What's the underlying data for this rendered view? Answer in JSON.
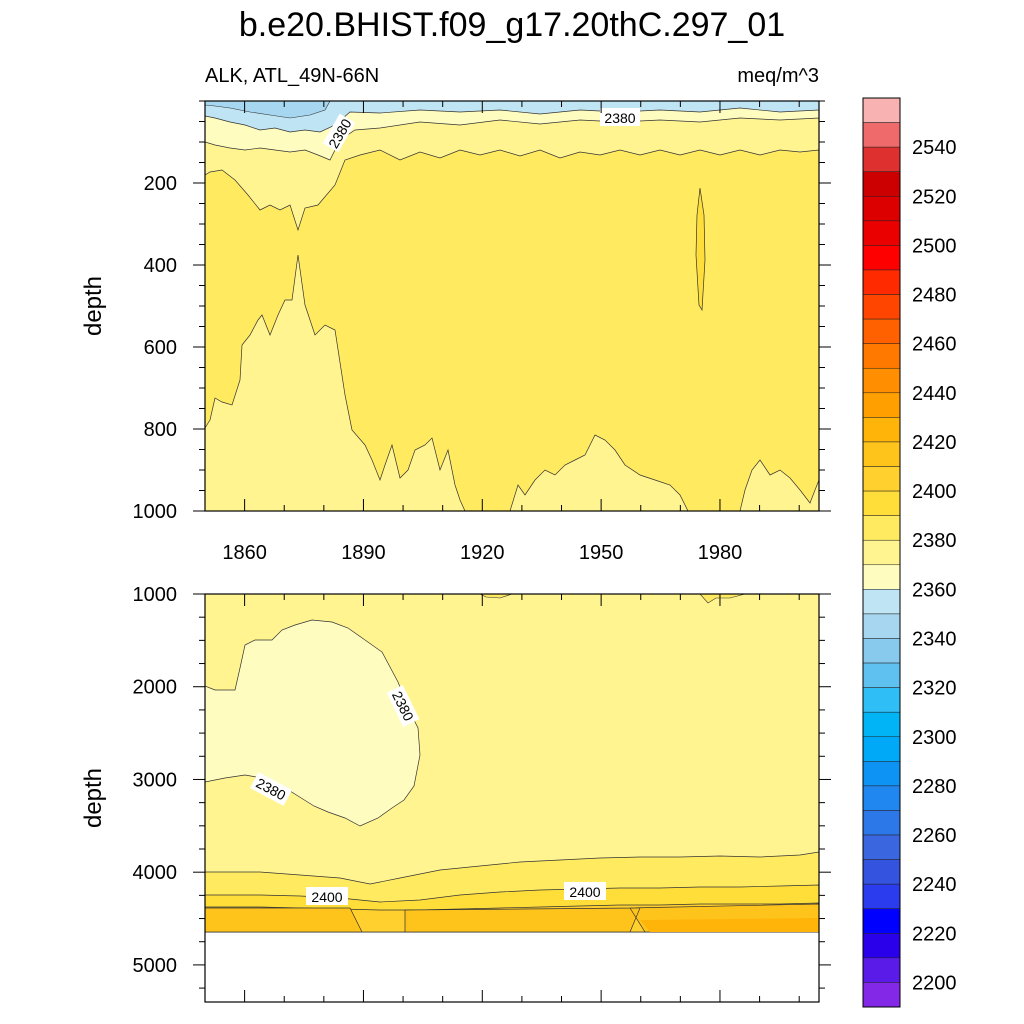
{
  "chart_data": [
    {
      "type": "contour",
      "title": "b.e20.BHIST.f09_g17.20thC.297_01",
      "subtitle_left": "ALK, ATL_49N-66N",
      "subtitle_right": "meq/m^3",
      "xlabel": "",
      "ylabel": "depth",
      "xlim": [
        1850,
        2005
      ],
      "ylim": [
        1000,
        0
      ],
      "x_ticks": [
        1860,
        1890,
        1920,
        1950,
        1980
      ],
      "y_ticks": [
        200,
        400,
        600,
        800,
        1000
      ],
      "contour_labels": [
        {
          "value": "2380",
          "x": 1883,
          "y": 65
        },
        {
          "value": "2380",
          "x": 1955,
          "y": 38
        }
      ],
      "regions": [
        {
          "level": "2340-2360",
          "description": "near surface 0-60 m, 1850-1885 and thin band 1920-2005"
        },
        {
          "level": "2360-2380",
          "description": "surface layer ~0-130 m"
        },
        {
          "level": "2380-2390",
          "description": "upper layer above ~150 m; deep 800-1000 m patches"
        },
        {
          "level": "2390-2400",
          "description": "main body 200-900 m"
        },
        {
          "level": "2400-2410",
          "description": "small lens near 1975, 210-490 m"
        }
      ]
    },
    {
      "type": "contour",
      "xlabel": "",
      "ylabel": "depth",
      "xlim": [
        1850,
        2005
      ],
      "ylim": [
        5400,
        1000
      ],
      "y_ticks": [
        1000,
        2000,
        3000,
        4000,
        5000
      ],
      "contour_labels": [
        {
          "value": "2380",
          "x": 1898,
          "y": 2200
        },
        {
          "value": "2380",
          "x": 1867,
          "y": 3080
        },
        {
          "value": "2400",
          "x": 1881,
          "y": 4230
        },
        {
          "value": "2400",
          "x": 1946,
          "y": 4170
        }
      ],
      "missing_below": 4620,
      "regions": [
        {
          "level": "2380-2390",
          "description": "lens 1300-3500 m, 1850-1904"
        },
        {
          "level": "2390-2400",
          "description": "bulk 1000-3900 m"
        },
        {
          "level": "2400-2410",
          "description": "layer 3900-4200 m"
        },
        {
          "level": "2410-2420",
          "description": "layer 4200-4620 m"
        },
        {
          "level": "2420-2430",
          "description": "bottom 4350-4620 m after 1960"
        }
      ]
    }
  ],
  "colorbar": {
    "labels": [
      "2540",
      "2520",
      "2500",
      "2480",
      "2460",
      "2440",
      "2420",
      "2400",
      "2380",
      "2360",
      "2340",
      "2320",
      "2300",
      "2280",
      "2260",
      "2240",
      "2220",
      "2200"
    ],
    "colors": [
      "#f9b2b2",
      "#ef6b6b",
      "#df3030",
      "#cc0000",
      "#dc0000",
      "#eb0000",
      "#ff0000",
      "#ff2a00",
      "#ff4500",
      "#ff6000",
      "#ff7800",
      "#ff8e00",
      "#ffa000",
      "#ffb40a",
      "#ffc41c",
      "#ffd02e",
      "#ffde3a",
      "#ffea60",
      "#fff490",
      "#fffcc0",
      "#bfe5f4",
      "#a6d6f0",
      "#88c9ee",
      "#5ec1f0",
      "#2fbff6",
      "#00b4f5",
      "#00a8f8",
      "#0c93f4",
      "#2086f0",
      "#2c78e8",
      "#3a66e0",
      "#3454e0",
      "#2a3ced",
      "#0000ff",
      "#2a00ea",
      "#5a1ae8",
      "#8228e6"
    ]
  }
}
